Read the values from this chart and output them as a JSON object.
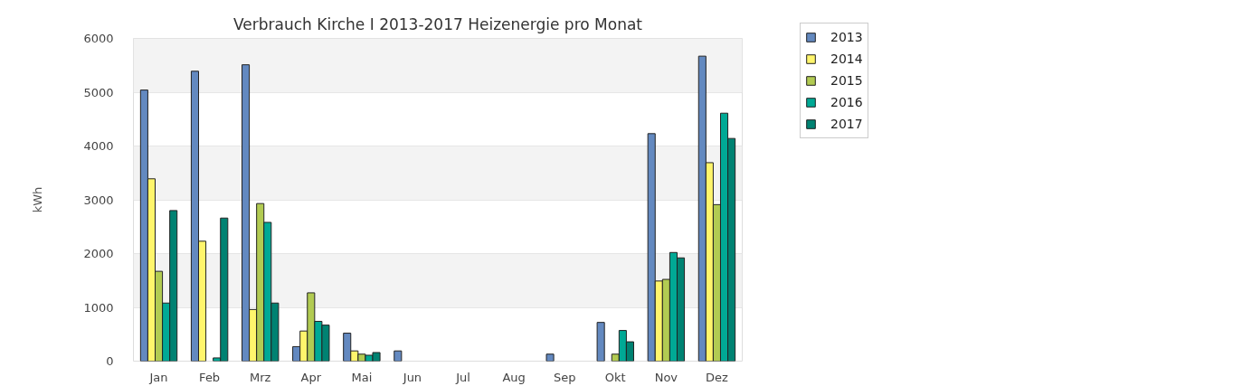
{
  "chart_data": {
    "type": "bar",
    "title": "Verbrauch Kirche I 2013-2017 Heizenergie pro Monat",
    "ylabel": "kWh",
    "categories": [
      "Jan",
      "Feb",
      "Mrz",
      "Apr",
      "Mai",
      "Jun",
      "Jul",
      "Aug",
      "Sep",
      "Okt",
      "Nov",
      "Dez"
    ],
    "series": [
      {
        "name": "2013",
        "color": "#6389c0",
        "values": [
          5040,
          5390,
          5510,
          270,
          520,
          190,
          null,
          null,
          130,
          720,
          4230,
          5670
        ]
      },
      {
        "name": "2014",
        "color": "#fff56c",
        "values": [
          3390,
          2230,
          960,
          560,
          190,
          null,
          null,
          null,
          null,
          null,
          1490,
          3690
        ]
      },
      {
        "name": "2015",
        "color": "#b2cb52",
        "values": [
          1670,
          null,
          2930,
          1270,
          130,
          null,
          null,
          null,
          null,
          130,
          1520,
          2910
        ]
      },
      {
        "name": "2016",
        "color": "#00a995",
        "values": [
          1080,
          60,
          2580,
          740,
          110,
          null,
          null,
          null,
          null,
          570,
          2020,
          4610
        ]
      },
      {
        "name": "2017",
        "color": "#008272",
        "values": [
          2800,
          2660,
          1080,
          670,
          160,
          null,
          null,
          null,
          null,
          360,
          1920,
          4140
        ]
      }
    ],
    "ylim": [
      0,
      6000
    ],
    "yticks": [
      0,
      1000,
      2000,
      3000,
      4000,
      5000,
      6000
    ],
    "grid": "y",
    "legend": "top right"
  }
}
